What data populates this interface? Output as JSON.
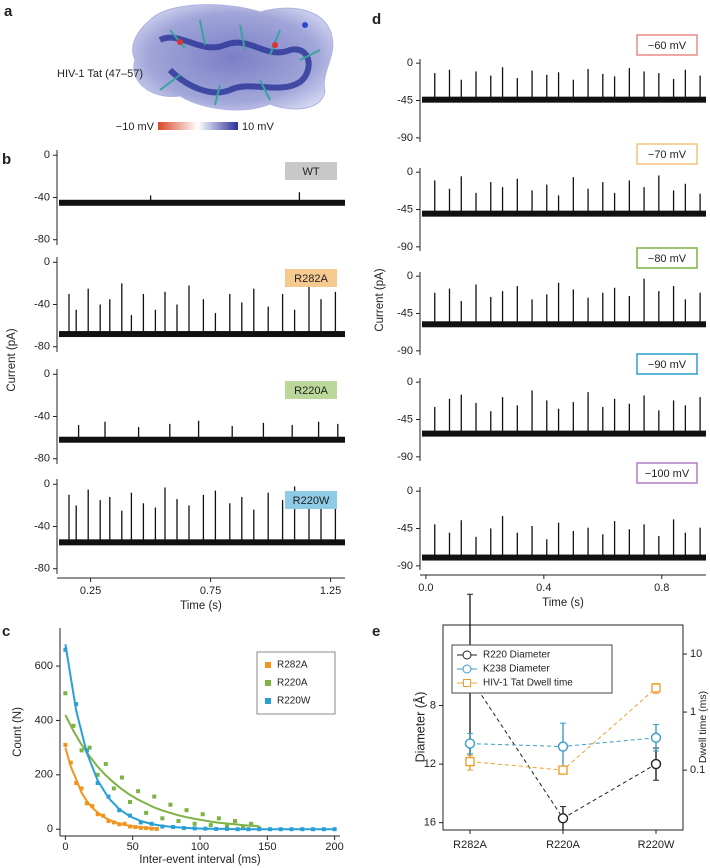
{
  "molecule": {
    "panel": "a",
    "label": "HIV-1 Tat (47–57)",
    "scale_min": "−10 mV",
    "scale_max": "10 mV"
  },
  "chart_data": [
    {
      "type": "trace",
      "panel": "b",
      "xlabel": "Time (s)",
      "ylabel": "Current (pA)",
      "xlim": [
        0.11,
        1.31
      ],
      "xticks": [
        0.25,
        0.75,
        1.25
      ],
      "ylim": [
        -85,
        5
      ],
      "yticks": [
        0,
        -40,
        -80
      ],
      "label_style": "filled",
      "line_color": "#111111",
      "series": [
        {
          "name": "WT",
          "color": "#c8c8c8",
          "baseline": -45,
          "x": [
            0.5,
            1.12
          ],
          "values": [
            -38,
            -35
          ]
        },
        {
          "name": "R282A",
          "color": "#f6c98f",
          "baseline": -68,
          "x": [
            0.16,
            0.19,
            0.24,
            0.29,
            0.33,
            0.38,
            0.42,
            0.47,
            0.52,
            0.56,
            0.61,
            0.66,
            0.72,
            0.77,
            0.83,
            0.88,
            0.93,
            0.99,
            1.05,
            1.1,
            1.16,
            1.21,
            1.27
          ],
          "values": [
            -30,
            -45,
            -25,
            -40,
            -35,
            -20,
            -50,
            -30,
            -45,
            -28,
            -40,
            -22,
            -35,
            -48,
            -30,
            -38,
            -25,
            -42,
            -30,
            -45,
            -20,
            -35,
            -28
          ]
        },
        {
          "name": "R220A",
          "color": "#b9d89a",
          "baseline": -62,
          "x": [
            0.2,
            0.31,
            0.45,
            0.58,
            0.7,
            0.84,
            0.97,
            1.09,
            1.2,
            1.28
          ],
          "values": [
            -48,
            -45,
            -50,
            -47,
            -44,
            -49,
            -46,
            -48,
            -45,
            -47
          ]
        },
        {
          "name": "R220W",
          "color": "#8fcbe6",
          "baseline": -55,
          "x": [
            0.16,
            0.19,
            0.24,
            0.29,
            0.33,
            0.38,
            0.42,
            0.47,
            0.52,
            0.56,
            0.61,
            0.66,
            0.72,
            0.77,
            0.83,
            0.88,
            0.93,
            0.99,
            1.05,
            1.1,
            1.16,
            1.21,
            1.27
          ],
          "values": [
            -10,
            -20,
            -5,
            -15,
            -12,
            -25,
            -8,
            -18,
            -22,
            -3,
            -14,
            -20,
            -10,
            -6,
            -18,
            -12,
            -24,
            -8,
            -15,
            -2,
            -20,
            -10,
            -16
          ]
        }
      ]
    },
    {
      "type": "trace",
      "panel": "d",
      "xlabel": "Time (s)",
      "ylabel": "Current (pA)",
      "xlim": [
        -0.02,
        0.95
      ],
      "xticks": [
        {
          "value": 0,
          "label": "0.0"
        },
        0.4,
        0.8
      ],
      "ylim": [
        -95,
        5
      ],
      "yticks": [
        0,
        -45,
        -90
      ],
      "label_style": "outline",
      "line_color": "#111111",
      "series": [
        {
          "name": "−60 mV",
          "color": "#e88a8a",
          "baseline": -44,
          "x": [
            0.03,
            0.08,
            0.12,
            0.17,
            0.22,
            0.26,
            0.31,
            0.36,
            0.41,
            0.45,
            0.5,
            0.55,
            0.6,
            0.64,
            0.69,
            0.74,
            0.79,
            0.84,
            0.88,
            0.93
          ],
          "values": [
            -12,
            -8,
            -20,
            -10,
            -15,
            -5,
            -18,
            -9,
            -14,
            -11,
            -20,
            -7,
            -13,
            -16,
            -6,
            -10,
            -12,
            -19,
            -8,
            -15
          ]
        },
        {
          "name": "−70 mV",
          "color": "#f2c27a",
          "baseline": -50,
          "x": [
            0.03,
            0.08,
            0.12,
            0.17,
            0.22,
            0.26,
            0.31,
            0.36,
            0.41,
            0.45,
            0.5,
            0.55,
            0.6,
            0.64,
            0.69,
            0.74,
            0.79,
            0.84,
            0.88,
            0.93
          ],
          "values": [
            -10,
            -20,
            -5,
            -25,
            -12,
            -18,
            -8,
            -22,
            -15,
            -28,
            -6,
            -20,
            -12,
            -25,
            -10,
            -18,
            -4,
            -22,
            -14,
            -26
          ]
        },
        {
          "name": "−80 mV",
          "color": "#7cb342",
          "baseline": -58,
          "x": [
            0.03,
            0.08,
            0.12,
            0.17,
            0.22,
            0.26,
            0.31,
            0.36,
            0.41,
            0.45,
            0.5,
            0.55,
            0.6,
            0.64,
            0.69,
            0.74,
            0.79,
            0.84,
            0.88,
            0.93
          ],
          "values": [
            -20,
            -15,
            -30,
            -10,
            -25,
            -18,
            -12,
            -28,
            -22,
            -8,
            -16,
            -26,
            -20,
            -14,
            -24,
            -3,
            -18,
            -12,
            -28,
            -20
          ]
        },
        {
          "name": "−90 mV",
          "color": "#2a9fd6",
          "baseline": -62,
          "x": [
            0.03,
            0.08,
            0.12,
            0.17,
            0.22,
            0.26,
            0.31,
            0.36,
            0.41,
            0.45,
            0.5,
            0.55,
            0.6,
            0.64,
            0.69,
            0.74,
            0.79,
            0.84,
            0.88,
            0.93
          ],
          "values": [
            -30,
            -20,
            -15,
            -25,
            -35,
            -18,
            -28,
            -10,
            -22,
            -32,
            -24,
            -12,
            -30,
            -20,
            -26,
            -16,
            -34,
            -22,
            -28,
            -18
          ]
        },
        {
          "name": "−100 mV",
          "color": "#b07cc6",
          "baseline": -80,
          "x": [
            0.03,
            0.08,
            0.12,
            0.17,
            0.22,
            0.26,
            0.31,
            0.36,
            0.41,
            0.45,
            0.5,
            0.55,
            0.6,
            0.64,
            0.69,
            0.74,
            0.79,
            0.84,
            0.88,
            0.93
          ],
          "values": [
            -40,
            -50,
            -35,
            -55,
            -45,
            -30,
            -50,
            -42,
            -58,
            -38,
            -48,
            -44,
            -52,
            -36,
            -46,
            -40,
            -54,
            -34,
            -50,
            -44
          ]
        }
      ]
    },
    {
      "type": "scatter",
      "panel": "c",
      "xlabel": "Inter-event interval (ms)",
      "ylabel": "Count (N)",
      "xlim": [
        -4,
        204
      ],
      "xticks": [
        0,
        50,
        100,
        150,
        200
      ],
      "ylim": [
        -25,
        740
      ],
      "yticks": [
        0,
        200,
        400,
        600
      ],
      "legend": "upper right",
      "series": [
        {
          "name": "R282A",
          "color": "#f0961e",
          "x": [
            0,
            4,
            8,
            12,
            16,
            20,
            24,
            28,
            32,
            36,
            40,
            44,
            48,
            52,
            56,
            60,
            64,
            68
          ],
          "values": [
            310,
            245,
            170,
            150,
            95,
            85,
            55,
            50,
            30,
            25,
            18,
            20,
            10,
            8,
            5,
            4,
            2,
            1
          ],
          "fit": [
            300,
            230,
            184,
            135,
            103,
            79,
            61,
            46,
            36,
            27,
            21,
            16,
            12,
            9,
            7,
            5,
            4,
            3
          ]
        },
        {
          "name": "R220A",
          "color": "#7cb342",
          "x": [
            0,
            6,
            12,
            18,
            24,
            30,
            36,
            42,
            48,
            54,
            60,
            66,
            72,
            78,
            84,
            90,
            96,
            102,
            108,
            114,
            120,
            126,
            132,
            138,
            144
          ],
          "values": [
            500,
            380,
            290,
            300,
            200,
            240,
            150,
            190,
            100,
            140,
            60,
            120,
            40,
            90,
            30,
            70,
            20,
            55,
            15,
            40,
            10,
            30,
            5,
            20,
            3
          ],
          "fit": [
            420,
            361,
            311,
            268,
            230,
            198,
            171,
            147,
            126,
            109,
            94,
            80,
            69,
            60,
            51,
            44,
            38,
            33,
            28,
            24,
            21,
            18,
            15,
            13,
            11
          ]
        },
        {
          "name": "R220W",
          "color": "#2a9fd6",
          "x": [
            0,
            8,
            16,
            24,
            32,
            40,
            48,
            56,
            64,
            72,
            80,
            88,
            96,
            104,
            112,
            120,
            128,
            136,
            144,
            152,
            160,
            168,
            176,
            184,
            192,
            200
          ],
          "values": [
            660,
            460,
            290,
            170,
            120,
            70,
            50,
            25,
            20,
            10,
            8,
            4,
            3,
            2,
            1,
            1,
            0,
            0,
            0,
            0,
            0,
            0,
            0,
            0,
            0,
            0
          ],
          "fit": [
            680,
            436,
            280,
            179,
            115,
            74,
            47,
            30,
            19,
            12,
            8,
            5,
            3,
            2,
            1,
            1,
            0,
            0,
            0,
            0,
            0,
            0,
            0,
            0,
            0,
            0
          ]
        }
      ]
    },
    {
      "type": "dual",
      "panel": "e",
      "ylabel": "Diameter (Å)",
      "y2label": "Dwell time (ms)",
      "categories": [
        "R282A",
        "R220A",
        "R220W"
      ],
      "ylim": [
        16.5,
        2.5
      ],
      "yticks": [
        8,
        12,
        16
      ],
      "y2lim": [
        0.0093,
        31.6
      ],
      "y2ticks": [
        0.1,
        1,
        10
      ],
      "y2log": true,
      "legend": "upper left",
      "series": [
        {
          "name": "R220 Diameter",
          "color": "#222222",
          "marker": "circle",
          "axis": "y",
          "values": [
            6.1,
            15.7,
            12.0
          ],
          "errors": [
            5.7,
            0.8,
            1.1
          ]
        },
        {
          "name": "K238 Diameter",
          "color": "#3a9cc8",
          "marker": "circle",
          "axis": "y",
          "values": [
            10.6,
            10.8,
            10.2
          ],
          "errors": [
            0.7,
            1.6,
            0.9
          ]
        },
        {
          "name": "HIV-1 Tat Dwell time",
          "color": "#f0a030",
          "marker": "square",
          "axis": "y2",
          "values": [
            0.14,
            0.1,
            2.6
          ],
          "errors": [
            0.04,
            0.01,
            0.5
          ]
        }
      ]
    }
  ]
}
